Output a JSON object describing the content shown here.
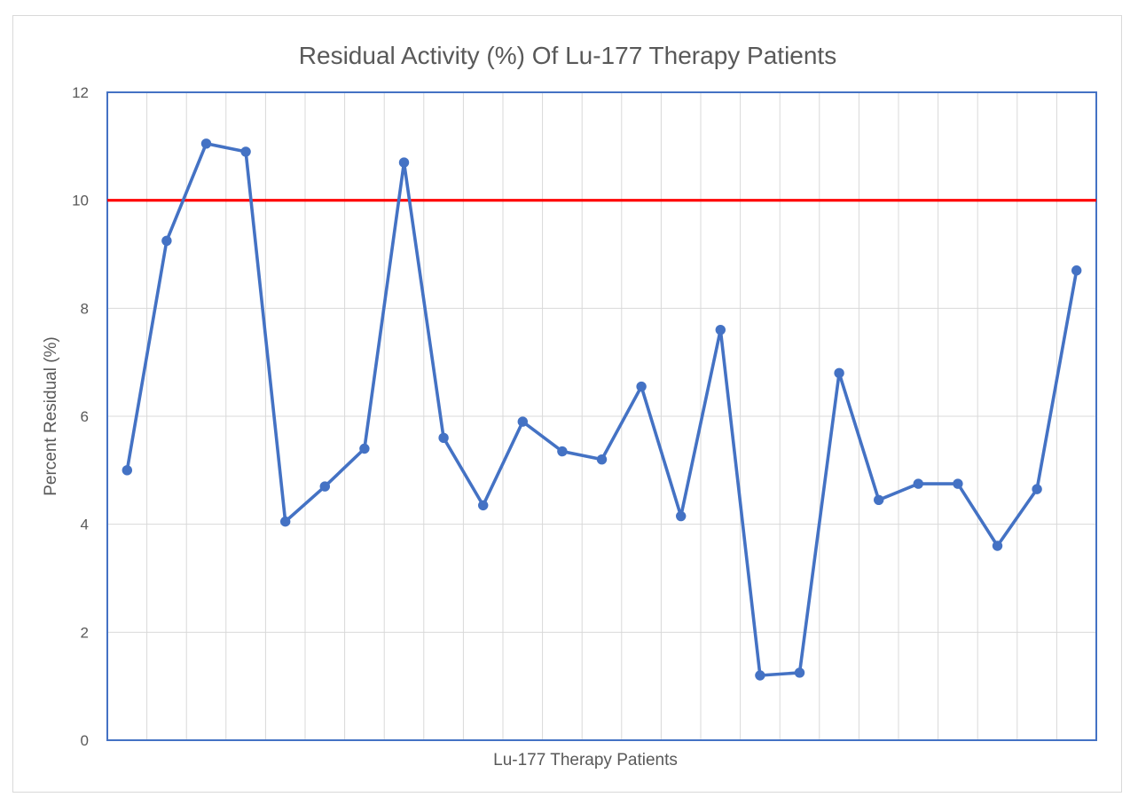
{
  "chart_data": {
    "type": "line",
    "title": "Residual Activity (%) Of Lu-177 Therapy Patients",
    "xlabel": "Lu-177 Therapy Patients",
    "ylabel": "Percent Residual (%)",
    "n_points": 25,
    "x_tick_labels": "none",
    "values": [
      5.0,
      9.25,
      11.05,
      10.9,
      4.05,
      4.7,
      5.4,
      10.7,
      5.6,
      4.35,
      5.9,
      5.35,
      5.2,
      6.55,
      4.15,
      7.6,
      1.2,
      1.25,
      6.8,
      4.45,
      4.75,
      4.75,
      3.6,
      4.65,
      8.7
    ],
    "ylim": [
      0,
      12
    ],
    "yticks": [
      0,
      2,
      4,
      6,
      8,
      10,
      12
    ],
    "grid": {
      "vertical": true,
      "horizontal": true
    },
    "legend": "none",
    "reference_line": {
      "y": 10,
      "color": "#FF0000"
    },
    "colors": {
      "series": "#4472C4",
      "marker": "#4472C4",
      "plot_border": "#4472C4",
      "gridline": "#D9D9D9",
      "chart_border": "#D9D9D9",
      "text": "#595959",
      "background": "#FFFFFF"
    }
  }
}
